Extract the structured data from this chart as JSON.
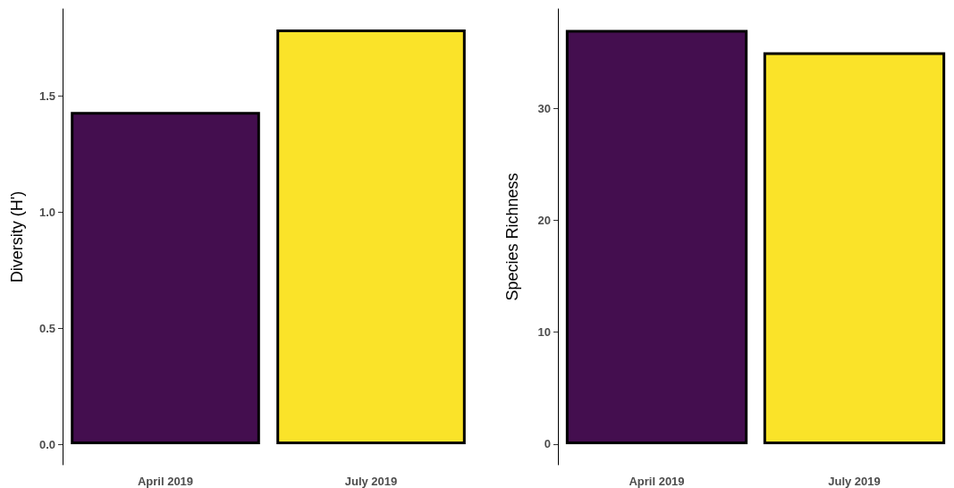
{
  "chart_data": [
    {
      "type": "bar",
      "categories": [
        "April 2019",
        "July 2019"
      ],
      "values": [
        1.43,
        1.785
      ],
      "colors": [
        "#440e4f",
        "#fae329"
      ],
      "ylabel": "Diversity (H')",
      "ylim": [
        -0.088,
        1.873
      ],
      "yticks": [
        {
          "value": 0,
          "label": "0.0"
        },
        0.5,
        {
          "value": 1,
          "label": "1.0"
        },
        1.5
      ],
      "grid": false
    },
    {
      "type": "bar",
      "categories": [
        "April 2019",
        "July 2019"
      ],
      "values": [
        37,
        35
      ],
      "colors": [
        "#440e4f",
        "#fae329"
      ],
      "ylabel": "Species Richness",
      "ylim": [
        -1.84,
        38.87
      ],
      "yticks": [
        0,
        10,
        20,
        30
      ],
      "grid": false
    }
  ]
}
